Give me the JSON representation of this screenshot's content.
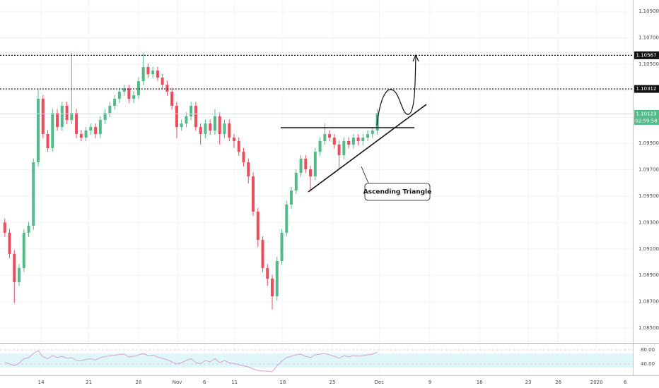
{
  "chart_data": {
    "type": "candlestick",
    "xlim": [
      -1,
      131.5
    ],
    "xticks": [
      {
        "value": 7.6,
        "label": "14"
      },
      {
        "value": 17.6,
        "label": "21"
      },
      {
        "value": 28,
        "label": "28"
      },
      {
        "value": 36.1,
        "label": "Nov"
      },
      {
        "value": 41.8,
        "label": "6"
      },
      {
        "value": 48.1,
        "label": "11"
      },
      {
        "value": 58.2,
        "label": "18"
      },
      {
        "value": 68.6,
        "label": "25"
      },
      {
        "value": 78.4,
        "label": "Dec"
      },
      {
        "value": 89,
        "label": "9"
      },
      {
        "value": 99.4,
        "label": "16"
      },
      {
        "value": 109.6,
        "label": "23"
      },
      {
        "value": 115.9,
        "label": "26"
      },
      {
        "value": 123.9,
        "label": "2020"
      },
      {
        "value": 129.9,
        "label": "6"
      }
    ],
    "ylim": [
      1.08393,
      1.10986
    ],
    "yticks": [
      {
        "value": 1.085,
        "label": "1.08500"
      },
      {
        "value": 1.087,
        "label": "1.08700"
      },
      {
        "value": 1.089,
        "label": "1.08900"
      },
      {
        "value": 1.091,
        "label": "1.09100"
      },
      {
        "value": 1.093,
        "label": "1.09300"
      },
      {
        "value": 1.095,
        "label": "1.09500"
      },
      {
        "value": 1.097,
        "label": "1.09700"
      },
      {
        "value": 1.099,
        "label": "1.09900"
      },
      {
        "value": 1.101,
        "label": "1.10100"
      },
      {
        "value": 1.103,
        "label": "1.10300"
      },
      {
        "value": 1.105,
        "label": "1.10500"
      },
      {
        "value": 1.107,
        "label": "1.10700"
      },
      {
        "value": 1.109,
        "label": "1.10900"
      }
    ],
    "grid": true,
    "up_color": "#53b987",
    "down_color": "#eb4d5c",
    "open": [
      1.093,
      1.09222,
      1.09061,
      1.08848,
      1.08955,
      1.09222,
      1.09275,
      1.09756,
      1.10237,
      1.0997,
      1.09863,
      1.1013,
      1.10023,
      1.10184,
      1.10077,
      1.1013,
      1.0997,
      1.09943,
      1.09997,
      1.10023,
      1.0997,
      1.10077,
      1.1013,
      1.10184,
      1.10237,
      1.10291,
      1.10317,
      1.10237,
      1.10264,
      1.10371,
      1.10478,
      1.10424,
      1.10451,
      1.10398,
      1.10344,
      1.10291,
      1.10184,
      1.10023,
      1.1005,
      1.10104,
      1.10184,
      1.10023,
      1.0997,
      1.1005,
      1.09997,
      1.10104,
      1.0997,
      1.1005,
      1.09943,
      1.09917,
      1.09836,
      1.09756,
      1.09649,
      1.09382,
      1.09168,
      1.08955,
      1.08874,
      1.08741,
      1.09008,
      1.09222,
      1.09436,
      1.09542,
      1.09676,
      1.09783,
      1.09703,
      1.09649,
      1.09836,
      1.09917,
      1.0997,
      1.09943,
      1.0989,
      1.0981,
      1.09917,
      1.0989,
      1.09943,
      1.09917,
      1.09943,
      1.0997,
      1.09997
    ],
    "high": [
      1.0933,
      1.0925,
      1.0909,
      1.08985,
      1.0925,
      1.09305,
      1.09785,
      1.1031,
      1.10265,
      1.1,
      1.1016,
      1.1016,
      1.10215,
      1.10215,
      1.10585,
      1.1016,
      1.1,
      1.10025,
      1.1005,
      1.1005,
      1.10105,
      1.1016,
      1.10215,
      1.10265,
      1.1032,
      1.10345,
      1.10345,
      1.10295,
      1.104,
      1.10585,
      1.10505,
      1.1048,
      1.1048,
      1.10425,
      1.10375,
      1.1032,
      1.10215,
      1.1008,
      1.10135,
      1.10215,
      1.10215,
      1.1005,
      1.1008,
      1.1008,
      1.1016,
      1.10135,
      1.1008,
      1.1008,
      1.0997,
      1.09945,
      1.09865,
      1.09785,
      1.0968,
      1.0941,
      1.09195,
      1.08985,
      1.08905,
      1.0904,
      1.0925,
      1.09465,
      1.0957,
      1.09705,
      1.0981,
      1.0981,
      1.0973,
      1.09865,
      1.09945,
      1.1005,
      1.1,
      1.0997,
      1.0992,
      1.09945,
      1.09945,
      1.0997,
      1.0997,
      1.0997,
      1.1,
      1.10025,
      1.1016
    ],
    "low": [
      1.0919,
      1.0903,
      1.0869,
      1.0882,
      1.08925,
      1.0919,
      1.09245,
      1.09725,
      1.0994,
      1.09835,
      1.09835,
      1.09995,
      1.09995,
      1.10045,
      1.10045,
      1.0994,
      1.09915,
      1.09915,
      1.09965,
      1.0994,
      1.0994,
      1.10045,
      1.101,
      1.10155,
      1.10205,
      1.1026,
      1.10205,
      1.10205,
      1.10235,
      1.1034,
      1.10395,
      1.10395,
      1.1037,
      1.10315,
      1.1026,
      1.10155,
      1.0994,
      1.09995,
      1.1002,
      1.10075,
      1.09995,
      1.0989,
      1.0994,
      1.09965,
      1.09965,
      1.0989,
      1.0994,
      1.09915,
      1.09865,
      1.09805,
      1.09725,
      1.09595,
      1.0935,
      1.09115,
      1.08925,
      1.0882,
      1.0864,
      1.0871,
      1.0898,
      1.09195,
      1.09405,
      1.09515,
      1.09645,
      1.09675,
      1.0954,
      1.0962,
      1.09805,
      1.0989,
      1.09915,
      1.0986,
      1.097,
      1.0978,
      1.0986,
      1.0986,
      1.09885,
      1.09885,
      1.09915,
      1.0994,
      1.09965
    ],
    "close": [
      1.09222,
      1.09061,
      1.08848,
      1.08955,
      1.09222,
      1.09275,
      1.09756,
      1.10237,
      1.0997,
      1.09863,
      1.1013,
      1.10023,
      1.10184,
      1.10077,
      1.1013,
      1.0997,
      1.09943,
      1.09997,
      1.10023,
      1.0997,
      1.10077,
      1.1013,
      1.10184,
      1.10237,
      1.10291,
      1.10317,
      1.10237,
      1.10264,
      1.10371,
      1.10478,
      1.10424,
      1.10451,
      1.10398,
      1.10344,
      1.10291,
      1.10184,
      1.10023,
      1.1005,
      1.10104,
      1.10184,
      1.10023,
      1.0997,
      1.1005,
      1.09997,
      1.10104,
      1.0997,
      1.1005,
      1.09943,
      1.09917,
      1.09836,
      1.09756,
      1.09649,
      1.09382,
      1.09168,
      1.08955,
      1.08874,
      1.08741,
      1.09008,
      1.09222,
      1.09436,
      1.09542,
      1.09676,
      1.09783,
      1.09703,
      1.09649,
      1.09836,
      1.09917,
      1.0997,
      1.09943,
      1.0989,
      1.0981,
      1.09917,
      1.0989,
      1.09943,
      1.09917,
      1.09943,
      1.0997,
      1.09997,
      1.1013
    ],
    "levels": [
      {
        "value": 1.10567,
        "label": "1.10567"
      },
      {
        "value": 1.10312,
        "label": "1.10312"
      }
    ],
    "current_price": {
      "value": 1.10123,
      "label": "1.10123"
    },
    "countdown": "02:59:58",
    "annotation": "Ascending Triangle",
    "rsi": {
      "type": "line",
      "color": "#d7a0d4",
      "ylim": [
        10,
        98
      ],
      "band": [
        30,
        70
      ],
      "yticks": [
        {
          "value": 80,
          "label": "80.00"
        },
        {
          "value": 40,
          "label": "40.00"
        }
      ],
      "values": [
        45,
        40,
        35,
        42,
        55,
        58,
        70,
        78,
        60,
        55,
        64,
        58,
        62,
        56,
        58,
        50,
        49,
        53,
        55,
        51,
        58,
        61,
        63,
        65,
        67,
        68,
        60,
        62,
        66,
        70,
        64,
        65,
        60,
        56,
        52,
        46,
        40,
        44,
        50,
        55,
        44,
        41,
        50,
        46,
        55,
        44,
        50,
        43,
        42,
        38,
        35,
        32,
        26,
        22,
        20,
        20,
        18,
        35,
        48,
        58,
        62,
        66,
        68,
        62,
        58,
        66,
        68,
        70,
        66,
        62,
        56,
        64,
        60,
        64,
        62,
        64,
        66,
        68,
        74
      ]
    }
  }
}
